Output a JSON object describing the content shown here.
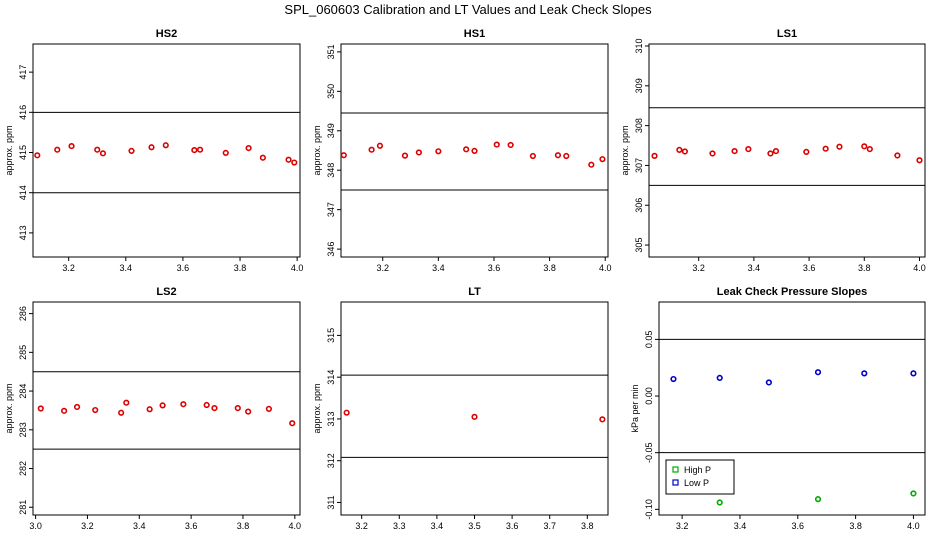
{
  "page_title": "SPL_060603  Calibration and LT Values and Leak Check Slopes",
  "chart_data": [
    {
      "type": "scatter",
      "title": "HS2",
      "ylabel": "approx. ppm",
      "xlim": [
        3.075,
        4.01
      ],
      "ylim": [
        412.4,
        417.7
      ],
      "xticks": [
        3.2,
        3.4,
        3.6,
        3.8,
        4.0
      ],
      "xtick_labels": [
        "3.2",
        "3.4",
        "3.6",
        "3.8",
        "4.0"
      ],
      "yticks": [
        413,
        414,
        415,
        416,
        417
      ],
      "ytick_labels": [
        "413",
        "414",
        "415",
        "416",
        "417"
      ],
      "hlines": [
        414,
        416
      ],
      "series": [
        {
          "color": "#dd0000",
          "x": [
            3.09,
            3.16,
            3.21,
            3.3,
            3.32,
            3.42,
            3.49,
            3.54,
            3.64,
            3.66,
            3.75,
            3.83,
            3.88,
            3.97,
            3.99
          ],
          "y": [
            414.93,
            415.07,
            415.16,
            415.07,
            414.98,
            415.04,
            415.13,
            415.18,
            415.06,
            415.07,
            414.99,
            415.11,
            414.87,
            414.82,
            414.75
          ]
        }
      ]
    },
    {
      "type": "scatter",
      "title": "HS1",
      "ylabel": "approx. ppm",
      "xlim": [
        3.05,
        4.01
      ],
      "ylim": [
        345.8,
        351.2
      ],
      "xticks": [
        3.2,
        3.4,
        3.6,
        3.8,
        4.0
      ],
      "xtick_labels": [
        "3.2",
        "3.4",
        "3.6",
        "3.8",
        "4.0"
      ],
      "yticks": [
        346,
        347,
        348,
        349,
        350,
        351
      ],
      "ytick_labels": [
        "346",
        "347",
        "348",
        "349",
        "350",
        "351"
      ],
      "hlines": [
        347.5,
        349.45
      ],
      "series": [
        {
          "color": "#dd0000",
          "x": [
            3.06,
            3.16,
            3.19,
            3.28,
            3.33,
            3.4,
            3.5,
            3.53,
            3.61,
            3.66,
            3.74,
            3.83,
            3.86,
            3.95,
            3.99
          ],
          "y": [
            348.38,
            348.52,
            348.62,
            348.37,
            348.45,
            348.48,
            348.53,
            348.49,
            348.65,
            348.64,
            348.36,
            348.38,
            348.36,
            348.14,
            348.28
          ]
        }
      ]
    },
    {
      "type": "scatter",
      "title": "LS1",
      "ylabel": "approx. ppm",
      "xlim": [
        3.02,
        4.02
      ],
      "ylim": [
        304.7,
        310.05
      ],
      "xticks": [
        3.2,
        3.4,
        3.6,
        3.8,
        4.0
      ],
      "xtick_labels": [
        "3.2",
        "3.4",
        "3.6",
        "3.8",
        "4.0"
      ],
      "yticks": [
        305,
        306,
        307,
        308,
        309,
        310
      ],
      "ytick_labels": [
        "305",
        "306",
        "307",
        "308",
        "309",
        "310"
      ],
      "hlines": [
        306.5,
        308.45
      ],
      "series": [
        {
          "color": "#dd0000",
          "x": [
            3.04,
            3.13,
            3.15,
            3.25,
            3.33,
            3.38,
            3.46,
            3.48,
            3.59,
            3.66,
            3.71,
            3.8,
            3.82,
            3.92,
            4.0
          ],
          "y": [
            307.24,
            307.39,
            307.35,
            307.3,
            307.36,
            307.41,
            307.3,
            307.36,
            307.34,
            307.42,
            307.47,
            307.48,
            307.41,
            307.25,
            307.13
          ]
        }
      ]
    },
    {
      "type": "scatter",
      "title": "LS2",
      "ylabel": "approx. ppm",
      "xlim": [
        2.99,
        4.02
      ],
      "ylim": [
        280.8,
        286.3
      ],
      "xticks": [
        3.0,
        3.2,
        3.4,
        3.6,
        3.8,
        4.0
      ],
      "xtick_labels": [
        "3.0",
        "3.2",
        "3.4",
        "3.6",
        "3.8",
        "4.0"
      ],
      "yticks": [
        281,
        282,
        283,
        284,
        285,
        286
      ],
      "ytick_labels": [
        "281",
        "282",
        "283",
        "284",
        "285",
        "286"
      ],
      "hlines": [
        282.5,
        284.5
      ],
      "series": [
        {
          "color": "#dd0000",
          "x": [
            3.02,
            3.11,
            3.16,
            3.23,
            3.33,
            3.35,
            3.44,
            3.49,
            3.57,
            3.66,
            3.69,
            3.78,
            3.82,
            3.9,
            3.99
          ],
          "y": [
            283.55,
            283.49,
            283.59,
            283.51,
            283.44,
            283.7,
            283.53,
            283.63,
            283.66,
            283.64,
            283.56,
            283.56,
            283.47,
            283.54,
            283.17
          ]
        }
      ]
    },
    {
      "type": "scatter",
      "title": "LT",
      "ylabel": "approx. ppm",
      "xlim": [
        3.145,
        3.855
      ],
      "ylim": [
        310.7,
        315.8
      ],
      "xticks": [
        3.2,
        3.3,
        3.4,
        3.5,
        3.6,
        3.7,
        3.8
      ],
      "xtick_labels": [
        "3.2",
        "3.3",
        "3.4",
        "3.5",
        "3.6",
        "3.7",
        "3.8"
      ],
      "yticks": [
        311,
        312,
        313,
        314,
        315
      ],
      "ytick_labels": [
        "311",
        "312",
        "313",
        "314",
        "315"
      ],
      "hlines": [
        312.08,
        314.05
      ],
      "series": [
        {
          "color": "#dd0000",
          "x": [
            3.16,
            3.5,
            3.84
          ],
          "y": [
            313.15,
            313.05,
            312.99
          ]
        }
      ]
    },
    {
      "type": "scatter",
      "title": "Leak Check Pressure Slopes",
      "ylabel": "kPa per min",
      "xlim": [
        3.12,
        4.04
      ],
      "ylim": [
        -0.105,
        0.083
      ],
      "xticks": [
        3.2,
        3.4,
        3.6,
        3.8,
        4.0
      ],
      "xtick_labels": [
        "3.2",
        "3.4",
        "3.6",
        "3.8",
        "4.0"
      ],
      "yticks": [
        -0.1,
        -0.05,
        0.0,
        0.05
      ],
      "ytick_labels": [
        "-0.10",
        "-0.05",
        "0.00",
        "0.05"
      ],
      "hlines": [
        0.05,
        -0.05
      ],
      "legend": "bottom-left",
      "series": [
        {
          "name": "High P",
          "color": "#00aa00",
          "x": [
            3.33,
            3.67,
            4.0
          ],
          "y": [
            -0.094,
            -0.091,
            -0.086
          ]
        },
        {
          "name": "Low P",
          "color": "#0000cc",
          "x": [
            3.17,
            3.33,
            3.5,
            3.67,
            3.83,
            4.0
          ],
          "y": [
            0.015,
            0.016,
            0.012,
            0.021,
            0.02,
            0.02
          ]
        }
      ]
    }
  ]
}
